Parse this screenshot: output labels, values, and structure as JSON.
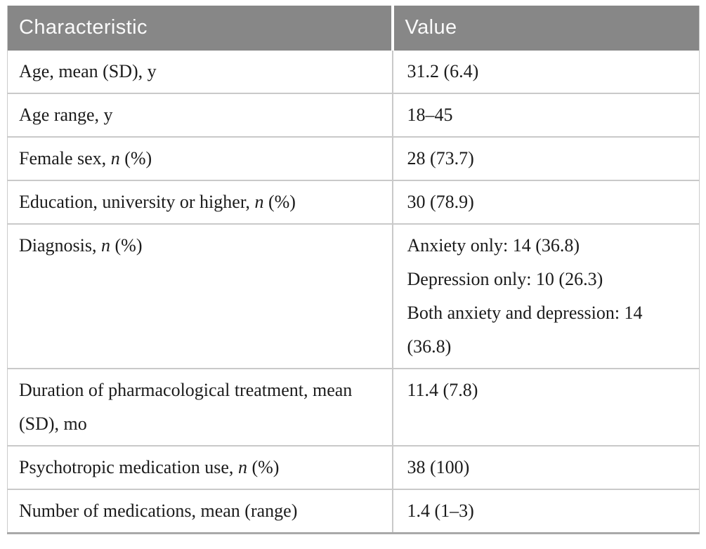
{
  "table": {
    "columns": [
      {
        "label": "Characteristic"
      },
      {
        "label": "Value"
      }
    ],
    "rows": [
      {
        "characteristic": [
          {
            "t": "Age, mean (SD), y"
          }
        ],
        "values": [
          "31.2 (6.4)"
        ]
      },
      {
        "characteristic": [
          {
            "t": "Age range, y"
          }
        ],
        "values": [
          "18–45"
        ]
      },
      {
        "characteristic": [
          {
            "t": "Female sex, "
          },
          {
            "t": "n",
            "i": true
          },
          {
            "t": " (%)"
          }
        ],
        "values": [
          "28 (73.7)"
        ]
      },
      {
        "characteristic": [
          {
            "t": "Education, university or higher, "
          },
          {
            "t": "n",
            "i": true
          },
          {
            "t": " (%)"
          }
        ],
        "values": [
          "30 (78.9)"
        ]
      },
      {
        "characteristic": [
          {
            "t": "Diagnosis, "
          },
          {
            "t": "n",
            "i": true
          },
          {
            "t": " (%)"
          }
        ],
        "values": [
          "Anxiety only: 14 (36.8)",
          "Depression only: 10 (26.3)",
          "Both anxiety and depression: 14 (36.8)"
        ]
      },
      {
        "characteristic": [
          {
            "t": "Duration of pharmacological treatment, mean (SD), mo"
          }
        ],
        "values": [
          "11.4 (7.8)"
        ]
      },
      {
        "characteristic": [
          {
            "t": "Psychotropic medication use, "
          },
          {
            "t": "n",
            "i": true
          },
          {
            "t": " (%)"
          }
        ],
        "values": [
          "38 (100)"
        ]
      },
      {
        "characteristic": [
          {
            "t": "Number of medications, mean (range)"
          }
        ],
        "values": [
          "1.4 (1–3)"
        ]
      }
    ],
    "colors": {
      "header_bg": "#878787",
      "header_text": "#fafafa",
      "row_border": "#c9c9c9",
      "outer_border": "#cbcbcb",
      "bottom_border": "#a9a9a9",
      "body_text": "#1b1b1b",
      "page_bg": "#ffffff"
    }
  }
}
